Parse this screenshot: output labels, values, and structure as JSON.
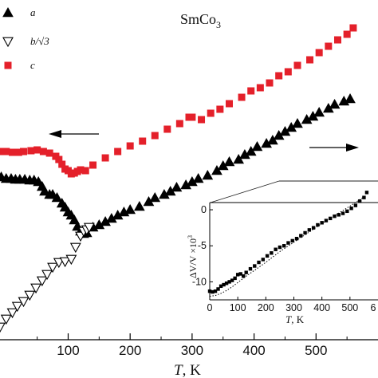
{
  "chart_data": [
    {
      "type": "scatter",
      "title": "SmCo",
      "title_subscript": "3",
      "xlabel_symbol": "T",
      "xlabel_unit": ", K",
      "xlim": [
        -10,
        600
      ],
      "x_ticks": [
        100,
        200,
        300,
        400,
        500
      ],
      "colors": {
        "a": "#000000",
        "b": "#000000",
        "c": "#e4202a"
      },
      "legend": {
        "placement": "top-left",
        "entries": [
          {
            "key": "a",
            "label": "a",
            "marker": "filled-triangle-up"
          },
          {
            "key": "b",
            "label": "b/√3",
            "marker": "open-triangle-down"
          },
          {
            "key": "c",
            "label": "c",
            "marker": "filled-square"
          }
        ]
      },
      "annotations": [
        {
          "text": "arrow-left",
          "meaning": "c series refers to left axis"
        },
        {
          "text": "arrow-right",
          "meaning": "a and b series refer to right axis"
        }
      ],
      "series": [
        {
          "key": "a",
          "marker": "filled-triangle-up",
          "points": [
            [
              -8,
              222
            ],
            [
              0,
              224
            ],
            [
              8,
              224
            ],
            [
              15,
              225
            ],
            [
              22,
              225
            ],
            [
              30,
              225
            ],
            [
              38,
              226
            ],
            [
              45,
              226
            ],
            [
              52,
              228
            ],
            [
              58,
              234
            ],
            [
              62,
              240
            ],
            [
              70,
              244
            ],
            [
              75,
              244
            ],
            [
              82,
              248
            ],
            [
              90,
              255
            ],
            [
              95,
              260
            ],
            [
              100,
              266
            ],
            [
              105,
              270
            ],
            [
              110,
              276
            ],
            [
              115,
              284
            ],
            [
              120,
              290
            ],
            [
              125,
              293
            ],
            [
              130,
              292
            ],
            [
              140,
              285
            ],
            [
              150,
              282
            ],
            [
              160,
              278
            ],
            [
              170,
              274
            ],
            [
              180,
              270
            ],
            [
              190,
              266
            ],
            [
              200,
              263
            ],
            [
              215,
              259
            ],
            [
              230,
              253
            ],
            [
              240,
              248
            ],
            [
              255,
              244
            ],
            [
              265,
              240
            ],
            [
              275,
              235
            ],
            [
              290,
              232
            ],
            [
              300,
              228
            ],
            [
              310,
              224
            ],
            [
              325,
              220
            ],
            [
              340,
              214
            ],
            [
              350,
              208
            ],
            [
              360,
              203
            ],
            [
              375,
              200
            ],
            [
              385,
              194
            ],
            [
              395,
              190
            ],
            [
              405,
              184
            ],
            [
              420,
              180
            ],
            [
              430,
              176
            ],
            [
              440,
              170
            ],
            [
              450,
              165
            ],
            [
              460,
              160
            ],
            [
              470,
              155
            ],
            [
              485,
              150
            ],
            [
              495,
              146
            ],
            [
              505,
              141
            ],
            [
              520,
              136
            ],
            [
              530,
              131
            ],
            [
              545,
              127
            ],
            [
              555,
              124
            ]
          ]
        },
        {
          "key": "b",
          "marker": "open-triangle-down",
          "points": [
            [
              -10,
              410
            ],
            [
              0,
              400
            ],
            [
              10,
              392
            ],
            [
              18,
              384
            ],
            [
              28,
              378
            ],
            [
              38,
              370
            ],
            [
              48,
              361
            ],
            [
              58,
              352
            ],
            [
              66,
              344
            ],
            [
              75,
              335
            ],
            [
              85,
              329
            ],
            [
              95,
              328
            ],
            [
              105,
              325
            ],
            [
              112,
              310
            ],
            [
              120,
              296
            ],
            [
              125,
              290
            ],
            [
              130,
              288
            ],
            [
              134,
              285
            ]
          ]
        },
        {
          "key": "c",
          "marker": "filled-square",
          "points": [
            [
              -10,
              190
            ],
            [
              0,
              190
            ],
            [
              10,
              191
            ],
            [
              20,
              191
            ],
            [
              28,
              190
            ],
            [
              40,
              189
            ],
            [
              50,
              188
            ],
            [
              60,
              190
            ],
            [
              70,
              192
            ],
            [
              80,
              196
            ],
            [
              85,
              200
            ],
            [
              90,
              206
            ],
            [
              95,
              212
            ],
            [
              100,
              214
            ],
            [
              105,
              218
            ],
            [
              110,
              217
            ],
            [
              115,
              215
            ],
            [
              120,
              213
            ],
            [
              128,
              214
            ],
            [
              140,
              207
            ],
            [
              160,
              198
            ],
            [
              180,
              190
            ],
            [
              200,
              183
            ],
            [
              220,
              177
            ],
            [
              240,
              170
            ],
            [
              260,
              162
            ],
            [
              280,
              155
            ],
            [
              295,
              147
            ],
            [
              300,
              147
            ],
            [
              315,
              150
            ],
            [
              330,
              142
            ],
            [
              345,
              137
            ],
            [
              360,
              130
            ],
            [
              380,
              122
            ],
            [
              395,
              114
            ],
            [
              410,
              110
            ],
            [
              425,
              104
            ],
            [
              440,
              95
            ],
            [
              455,
              90
            ],
            [
              470,
              82
            ],
            [
              490,
              75
            ],
            [
              505,
              66
            ],
            [
              520,
              58
            ],
            [
              535,
              50
            ],
            [
              550,
              43
            ],
            [
              560,
              35
            ]
          ]
        }
      ]
    },
    {
      "type": "scatter",
      "placement": "inset-lower-right",
      "xlabel_symbol": "T",
      "xlabel_unit": ", K",
      "ylabel": "ΔV/V ×10",
      "ylabel_superscript": "3",
      "xlim": [
        0,
        600
      ],
      "ylim": [
        -12.5,
        1
      ],
      "x_ticks": [
        0,
        100,
        200,
        300,
        400,
        500
      ],
      "x_tick_last_visible": "6",
      "y_ticks": [
        0,
        -5,
        -10
      ],
      "series": [
        {
          "name": "measured",
          "marker": "filled-square",
          "points": [
            [
              0,
              -11.3
            ],
            [
              10,
              -11.4
            ],
            [
              20,
              -11.3
            ],
            [
              30,
              -11.0
            ],
            [
              40,
              -10.6
            ],
            [
              50,
              -10.4
            ],
            [
              60,
              -10.2
            ],
            [
              70,
              -10.0
            ],
            [
              80,
              -9.8
            ],
            [
              90,
              -9.5
            ],
            [
              100,
              -9.0
            ],
            [
              110,
              -8.9
            ],
            [
              120,
              -9.2
            ],
            [
              130,
              -8.7
            ],
            [
              145,
              -8.2
            ],
            [
              160,
              -7.8
            ],
            [
              175,
              -7.3
            ],
            [
              190,
              -6.9
            ],
            [
              205,
              -6.4
            ],
            [
              220,
              -6.0
            ],
            [
              235,
              -5.5
            ],
            [
              250,
              -5.2
            ],
            [
              265,
              -5.0
            ],
            [
              280,
              -4.6
            ],
            [
              295,
              -4.3
            ],
            [
              310,
              -4.0
            ],
            [
              325,
              -3.6
            ],
            [
              340,
              -3.2
            ],
            [
              355,
              -2.8
            ],
            [
              370,
              -2.5
            ],
            [
              385,
              -2.1
            ],
            [
              400,
              -1.8
            ],
            [
              415,
              -1.5
            ],
            [
              430,
              -1.2
            ],
            [
              445,
              -0.9
            ],
            [
              460,
              -0.7
            ],
            [
              475,
              -0.5
            ],
            [
              490,
              -0.2
            ],
            [
              505,
              0.2
            ],
            [
              520,
              0.6
            ],
            [
              535,
              1.2
            ],
            [
              550,
              1.7
            ],
            [
              560,
              2.4
            ]
          ]
        },
        {
          "name": "fit",
          "marker": "dotted-line",
          "points": [
            [
              0,
              -12.0
            ],
            [
              20,
              -11.9
            ],
            [
              40,
              -11.6
            ],
            [
              60,
              -11.2
            ],
            [
              80,
              -10.7
            ],
            [
              100,
              -10.1
            ],
            [
              130,
              -9.2
            ],
            [
              160,
              -8.4
            ],
            [
              200,
              -7.3
            ],
            [
              250,
              -5.8
            ],
            [
              300,
              -4.5
            ],
            [
              350,
              -3.2
            ],
            [
              400,
              -1.9
            ],
            [
              450,
              -0.7
            ],
            [
              500,
              0.5
            ],
            [
              550,
              1.8
            ]
          ]
        }
      ]
    }
  ]
}
